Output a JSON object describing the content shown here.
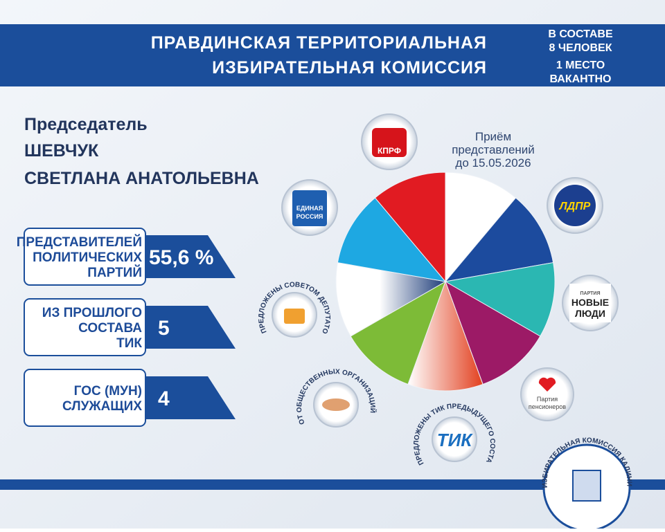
{
  "header": {
    "title_lines": [
      "ПРАВДИНСКАЯ ТЕРРИТОРИАЛЬНАЯ",
      "ИЗБИРАТЕЛЬНАЯ КОМИССИЯ"
    ],
    "info_lines": [
      "В СОСТАВЕ",
      "8 ЧЕЛОВЕК",
      "1 МЕСТО",
      "ВАКАНТНО"
    ]
  },
  "chairman": {
    "label": "Председатель",
    "name_lines": [
      "ШЕВЧУК",
      "СВЕТЛАНА АНАТОЛЬЕВНА"
    ]
  },
  "stats": [
    {
      "label_lines": [
        "ПРЕДСТАВИТЕЛЕЙ",
        "ПОЛИТИЧЕСКИХ",
        "ПАРТИЙ"
      ],
      "value": "55,6 %"
    },
    {
      "label_lines": [
        "ИЗ ПРОШЛОГО",
        "СОСТАВА",
        "ТИК"
      ],
      "value": "5"
    },
    {
      "label_lines": [
        "ГОС (МУН)",
        "СЛУЖАЩИХ"
      ],
      "value": "4"
    }
  ],
  "notice_lines": [
    "Приём",
    "представлений",
    "до 15.05.2026"
  ],
  "logos": {
    "kprf": "КПРФ",
    "ldpr": "ЛДПР",
    "er_lines": [
      "ЕДИНАЯ",
      "РОССИЯ"
    ],
    "nl_lines": [
      "ПАРТИЯ",
      "НОВЫЕ",
      "ЛЮДИ"
    ],
    "pens_lines": [
      "Партия",
      "пенсионеров"
    ],
    "council": "ПРЕДЛОЖЕНЫ СОВЕТОМ ДЕПУТАТОВ",
    "public": "ОТ ОБЩЕСТВЕННЫХ ОРГАНИЗАЦИЙ",
    "tik_prev": "ПРЕДЛОЖЕНЫ ТИК ПРЕДЫДУЩЕГО СОСТАВА",
    "tik": "ТИК"
  },
  "emblem": "ИЗБИРАТЕЛЬНАЯ КОМИССИЯ КАЛИНИНГРАДСКОЙ ОБЛАСТИ"
}
